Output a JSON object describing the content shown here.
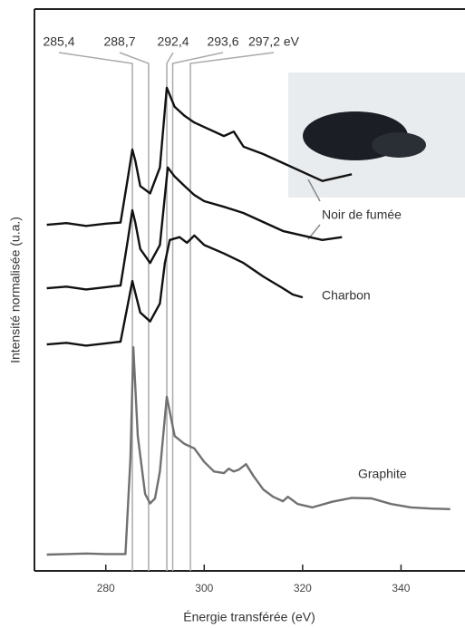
{
  "chart_data": {
    "type": "line",
    "xlabel": "Énergie transférée (eV)",
    "ylabel": "Intensité normalisée (u.a.)",
    "xlim": [
      265.5,
      353
    ],
    "ylim": [
      0,
      100
    ],
    "xticks": [
      280,
      300,
      320,
      340
    ],
    "reference_lines": [
      {
        "value": 285.4,
        "label": "285,4"
      },
      {
        "value": 288.7,
        "label": "288,7"
      },
      {
        "value": 292.4,
        "label": "292,4"
      },
      {
        "value": 293.6,
        "label": "293,6"
      },
      {
        "value": 297.2,
        "label": "297,2 eV"
      }
    ],
    "series": [
      {
        "name": "Noir de fumée",
        "color": "#111111",
        "x": [
          268,
          272,
          276,
          280,
          283,
          284.5,
          285.4,
          286,
          287,
          289,
          291,
          292.4,
          294,
          296,
          298,
          300,
          304,
          306,
          308,
          312,
          316,
          320,
          324,
          328,
          330
        ],
        "values": [
          61.6,
          61.9,
          61.4,
          61.8,
          62.0,
          70.0,
          75.0,
          73.0,
          68.5,
          67.2,
          71.8,
          86.0,
          82.6,
          81.0,
          79.8,
          79.0,
          77.4,
          78.2,
          75.5,
          74.2,
          72.6,
          71.0,
          69.4,
          70.2,
          70.6
        ]
      },
      {
        "color": "#111111",
        "x": [
          268,
          272,
          276,
          280,
          283,
          284.5,
          285.4,
          286,
          287,
          289,
          291,
          292.6,
          294,
          296,
          298,
          300,
          304,
          308,
          312,
          316,
          320,
          324,
          328
        ],
        "values": [
          50.3,
          50.6,
          50.1,
          50.5,
          50.8,
          59.0,
          64.2,
          62.0,
          57.3,
          54.8,
          58.0,
          71.8,
          70.2,
          68.5,
          66.9,
          65.8,
          64.8,
          63.7,
          62.1,
          60.5,
          59.7,
          58.9,
          59.4
        ]
      },
      {
        "name": "Charbon",
        "color": "#111111",
        "x": [
          268,
          272,
          276,
          280,
          283,
          284.5,
          285.4,
          287,
          289,
          291,
          292,
          293,
          295,
          296.5,
          298,
          300,
          304,
          308,
          312,
          316,
          318,
          320
        ],
        "values": [
          40.3,
          40.6,
          40.1,
          40.5,
          40.8,
          47.5,
          51.6,
          46.0,
          44.4,
          47.6,
          54.8,
          58.9,
          59.4,
          58.4,
          59.7,
          58.0,
          56.5,
          54.8,
          52.4,
          50.3,
          49.2,
          48.7
        ]
      },
      {
        "name": "Graphite",
        "color": "#707070",
        "x": [
          268,
          272,
          276,
          280,
          284,
          285,
          285.6,
          286.5,
          288,
          289,
          290,
          291,
          292.4,
          294,
          296,
          298,
          300,
          302,
          304,
          305,
          306,
          307,
          308.5,
          310,
          312,
          314,
          316,
          317,
          319,
          322,
          326,
          330,
          334,
          338,
          342,
          346,
          350
        ],
        "values": [
          2.9,
          3.0,
          3.1,
          3.0,
          3.0,
          20.0,
          39.8,
          24.0,
          13.7,
          12.0,
          12.9,
          17.7,
          31.0,
          24.0,
          22.6,
          21.8,
          19.4,
          17.7,
          17.4,
          18.2,
          17.7,
          18.0,
          19.0,
          16.9,
          14.5,
          13.2,
          12.4,
          13.2,
          11.9,
          11.3,
          12.3,
          13.0,
          12.9,
          11.9,
          11.3,
          11.1,
          11.0
        ]
      }
    ]
  }
}
